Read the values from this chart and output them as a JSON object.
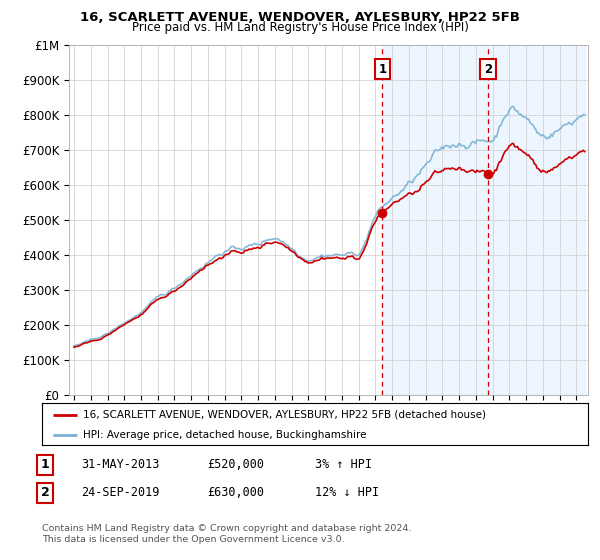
{
  "title": "16, SCARLETT AVENUE, WENDOVER, AYLESBURY, HP22 5FB",
  "subtitle": "Price paid vs. HM Land Registry's House Price Index (HPI)",
  "ylim": [
    0,
    1000000
  ],
  "yticks": [
    0,
    100000,
    200000,
    300000,
    400000,
    500000,
    600000,
    700000,
    800000,
    900000,
    1000000
  ],
  "ytick_labels": [
    "£0",
    "£100K",
    "£200K",
    "£300K",
    "£400K",
    "£500K",
    "£600K",
    "£700K",
    "£800K",
    "£900K",
    "£1M"
  ],
  "sale1_date": "31-MAY-2013",
  "sale1_price": 520000,
  "sale1_pct": "3%",
  "sale1_dir": "↑",
  "sale1_x": 2013.42,
  "sale2_date": "24-SEP-2019",
  "sale2_price": 630000,
  "sale2_dir": "↓",
  "sale2_pct": "12%",
  "sale2_x": 2019.73,
  "legend_line1": "16, SCARLETT AVENUE, WENDOVER, AYLESBURY, HP22 5FB (detached house)",
  "legend_line2": "HPI: Average price, detached house, Buckinghamshire",
  "copyright_text": "Contains HM Land Registry data © Crown copyright and database right 2024.\nThis data is licensed under the Open Government Licence v3.0.",
  "hpi_color": "#7ab0d4",
  "price_color": "#cc0000",
  "shade_color": "#ddeeff",
  "background_color": "#ffffff",
  "grid_color": "#cccccc",
  "num_box_color": "#cc0000"
}
